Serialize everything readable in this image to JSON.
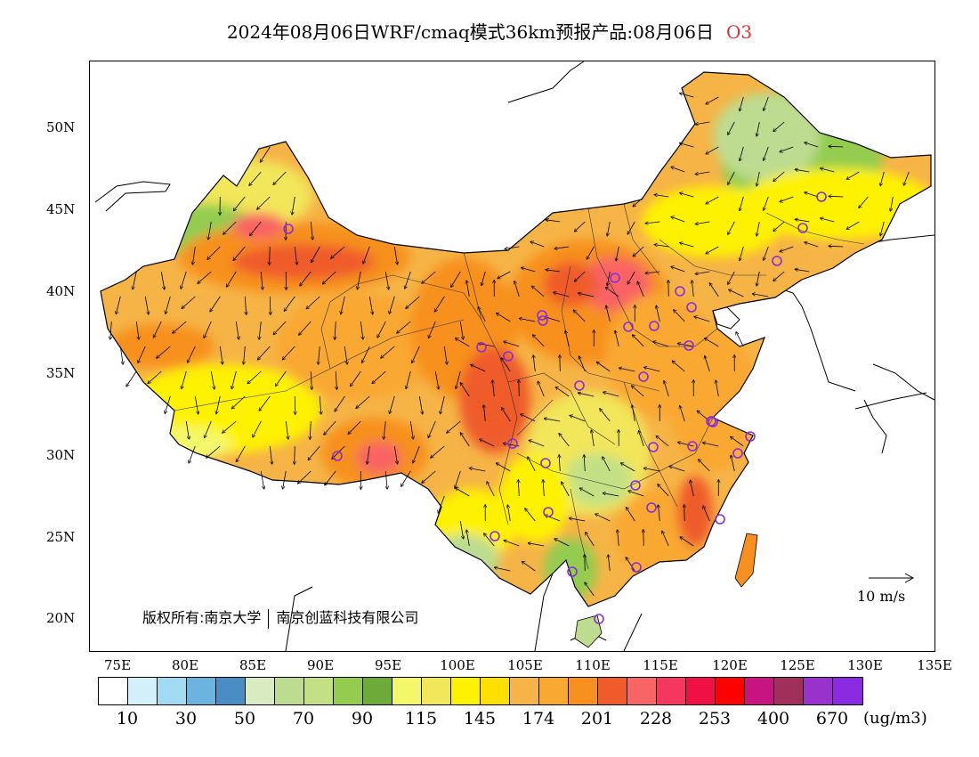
{
  "title": {
    "main": "2024年08月06日WRF/cmaq模式36km预报产品:08月06日",
    "pollutant": "O3"
  },
  "map": {
    "lat_labels": [
      "50N",
      "45N",
      "40N",
      "35N",
      "30N",
      "25N",
      "20N"
    ],
    "lon_labels": [
      "75E",
      "80E",
      "85E",
      "90E",
      "95E",
      "100E",
      "105E",
      "110E",
      "115E",
      "120E",
      "125E",
      "130E",
      "135E"
    ],
    "copyright_left": "版权所有:南京大学",
    "copyright_right": "南京创蓝科技有限公司",
    "wind_scale": "10 m/s"
  },
  "legend": {
    "colors": [
      "#ffffff",
      "#d2effa",
      "#a0dbf3",
      "#6cb4e0",
      "#4a8cc4",
      "#d9ebc0",
      "#bddc8f",
      "#c3e184",
      "#93cc4f",
      "#6eaa3a",
      "#f3f76a",
      "#f2e65a",
      "#fff200",
      "#ffe000",
      "#f6b446",
      "#f9a832",
      "#f7901e",
      "#ef5b2a",
      "#f96464",
      "#f5365e",
      "#f01046",
      "#ff0000",
      "#c8147f",
      "#a0305a",
      "#9932cc",
      "#8a2be2"
    ],
    "labels": [
      "10",
      "30",
      "50",
      "70",
      "90",
      "115",
      "145",
      "174",
      "201",
      "228",
      "253",
      "400",
      "670"
    ],
    "unit": "(ug/m3)"
  }
}
